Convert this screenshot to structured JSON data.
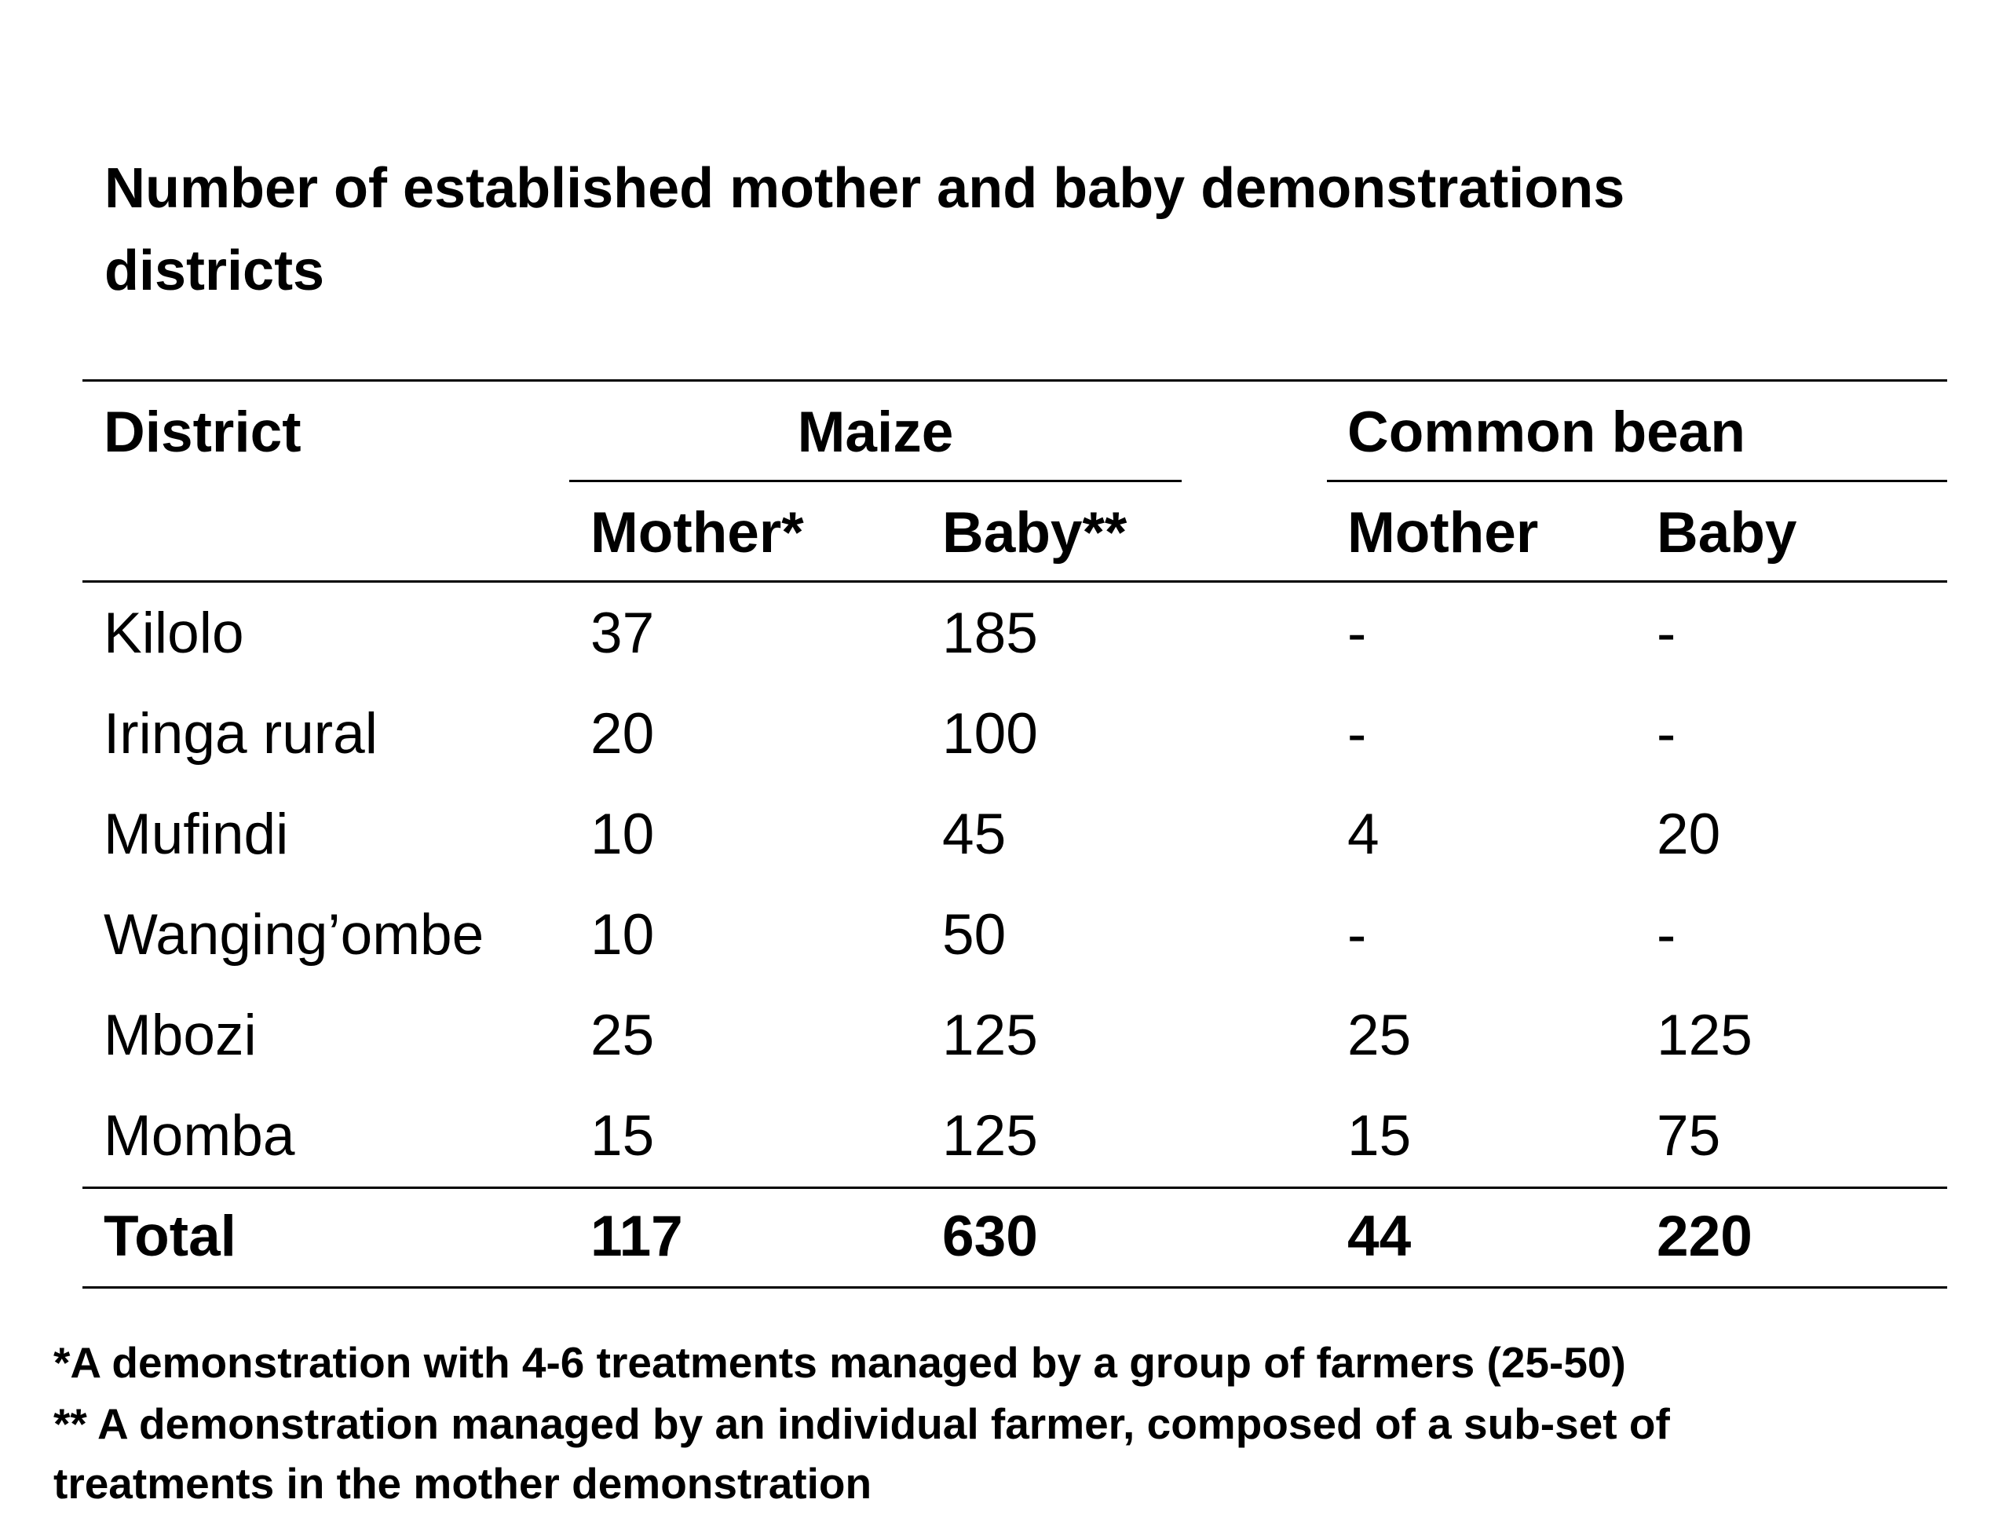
{
  "title": {
    "line1": "Number of established mother and baby demonstrations",
    "line2": "districts"
  },
  "table": {
    "header": {
      "district": "District",
      "maize": "Maize",
      "common_bean": "Common bean",
      "maize_mother": "Mother*",
      "maize_baby": "Baby**",
      "bean_mother": "Mother",
      "bean_baby": "Baby"
    },
    "rows": [
      {
        "district": "Kilolo",
        "maize_mother": "37",
        "maize_baby": "185",
        "bean_mother": "-",
        "bean_baby": "-"
      },
      {
        "district": "Iringa rural",
        "maize_mother": "20",
        "maize_baby": "100",
        "bean_mother": "-",
        "bean_baby": "-"
      },
      {
        "district": "Mufindi",
        "maize_mother": "10",
        "maize_baby": "45",
        "bean_mother": "4",
        "bean_baby": "20"
      },
      {
        "district": "Wanging’ombe",
        "maize_mother": "10",
        "maize_baby": "50",
        "bean_mother": "-",
        "bean_baby": "-"
      },
      {
        "district": "Mbozi",
        "maize_mother": "25",
        "maize_baby": "125",
        "bean_mother": "25",
        "bean_baby": "125"
      },
      {
        "district": "Momba",
        "maize_mother": "15",
        "maize_baby": "125",
        "bean_mother": "15",
        "bean_baby": "75"
      }
    ],
    "total": {
      "district": "Total",
      "maize_mother": "117",
      "maize_baby": "630",
      "bean_mother": "44",
      "bean_baby": "220"
    }
  },
  "footnotes": {
    "note1": "*A demonstration with 4-6 treatments managed by a group of farmers (25-50)",
    "note2_line1": "** A demonstration managed by an individual farmer,  composed of a sub-set of",
    "note2_line2": "treatments in the mother demonstration"
  }
}
